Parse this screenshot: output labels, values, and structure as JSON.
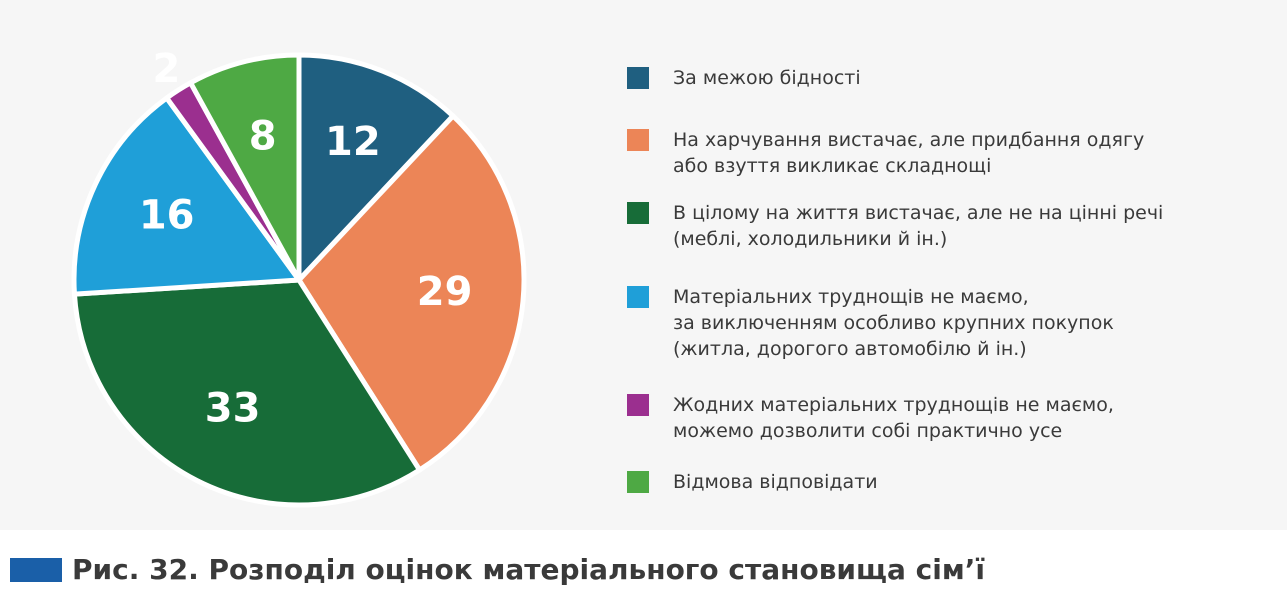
{
  "chart_data": {
    "type": "pie",
    "title": "Рис. 32. Розподіл оцінок матеріального становища сім’ї",
    "categories": [
      "За межою бідності",
      "На харчування вистачає, але придбання одягу\nабо взуття викликає складнощі",
      "В цілому на життя вистачає, але не на цінні речі\n(меблі, холодильники й ін.)",
      "Матеріальних труднощів не маємо,\nза виключенням особливо крупних покупок\n(житла, дорогого автомобілю й ін.)",
      "Жодних матеріальних труднощів не маємо,\nможемо дозволити собі практично усе",
      "Відмова відповідати"
    ],
    "values": [
      12,
      29,
      33,
      16,
      2,
      8
    ],
    "colors": [
      "#1f5f80",
      "#ec8557",
      "#176c38",
      "#1f9fd8",
      "#9b2f8f",
      "#4ea944"
    ],
    "legend": "right"
  }
}
